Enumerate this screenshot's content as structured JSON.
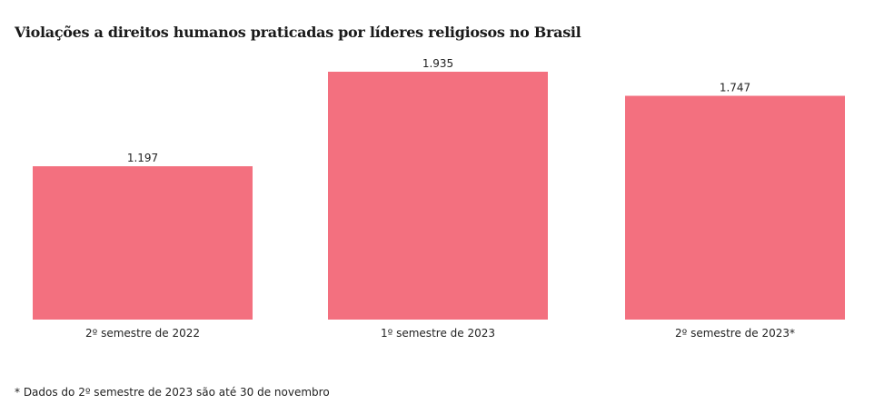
{
  "chart_data": {
    "type": "bar",
    "title": "Violações a direitos humanos praticadas por líderes religiosos no Brasil",
    "categories": [
      "2º semestre de 2022",
      "1º semestre de 2023",
      "2º semestre de 2023*"
    ],
    "values": [
      1197,
      1935,
      1747
    ],
    "value_labels": [
      "1.197",
      "1.935",
      "1.747"
    ],
    "xlabel": "",
    "ylabel": "",
    "ylim": [
      0,
      1935
    ],
    "grid": false,
    "bar_color": "#f3707f",
    "footnote": "* Dados do 2º semestre de 2023 são até 30 de novembro"
  }
}
